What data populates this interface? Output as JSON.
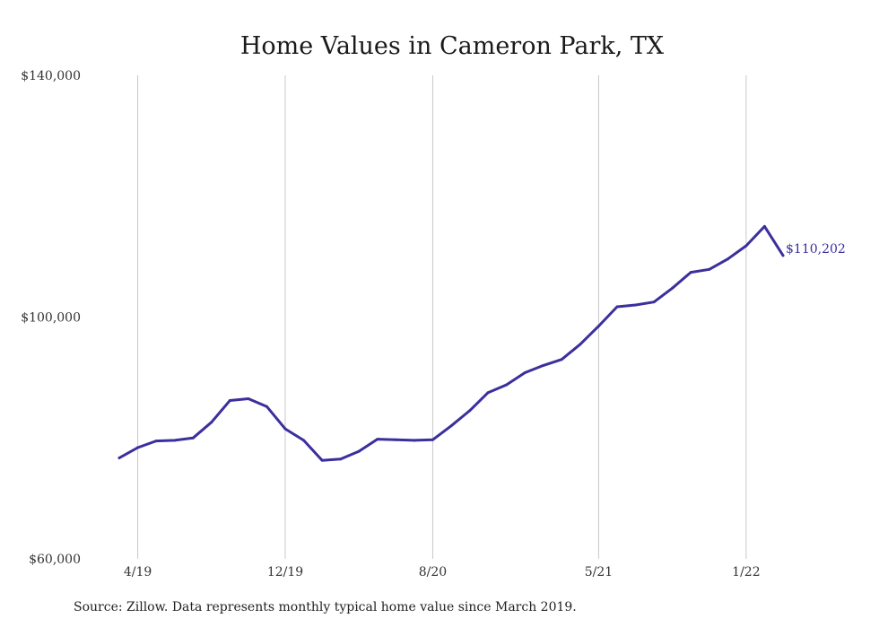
{
  "chart_data": {
    "type": "line",
    "title": "Home Values in Cameron Park, TX",
    "xlabel": "",
    "ylabel": "",
    "ylim": [
      60000,
      140000
    ],
    "yticks": [
      "$60,000",
      "$100,000",
      "$140,000"
    ],
    "xticks": [
      "4/19",
      "12/19",
      "8/20",
      "5/21",
      "1/22"
    ],
    "grid": "vertical",
    "line_color": "#3b2f9c",
    "series": [
      {
        "x": [
          "2019-03",
          "2019-04",
          "2019-05",
          "2019-06",
          "2019-07",
          "2019-08",
          "2019-09",
          "2019-10",
          "2019-11",
          "2019-12",
          "2020-01",
          "2020-02",
          "2020-03",
          "2020-04",
          "2020-05",
          "2020-06",
          "2020-07",
          "2020-08",
          "2020-09",
          "2020-10",
          "2020-11",
          "2020-12",
          "2021-01",
          "2021-02",
          "2021-03",
          "2021-04",
          "2021-05",
          "2021-06",
          "2021-07",
          "2021-08",
          "2021-09",
          "2021-10",
          "2021-11",
          "2021-12",
          "2022-01",
          "2022-02",
          "2022-03"
        ],
        "values": [
          76700,
          78400,
          79500,
          79600,
          80000,
          82600,
          86200,
          86500,
          85200,
          81500,
          79600,
          76300,
          76500,
          77800,
          79800,
          79700,
          79600,
          79700,
          82000,
          84500,
          87500,
          88800,
          90800,
          92000,
          93000,
          95500,
          98500,
          101700,
          102000,
          102500,
          104800,
          107400,
          107900,
          109600,
          111800,
          115000,
          110202
        ]
      }
    ],
    "end_label": "$110,202"
  },
  "source_note": "Source: Zillow. Data represents monthly typical home value since March 2019."
}
